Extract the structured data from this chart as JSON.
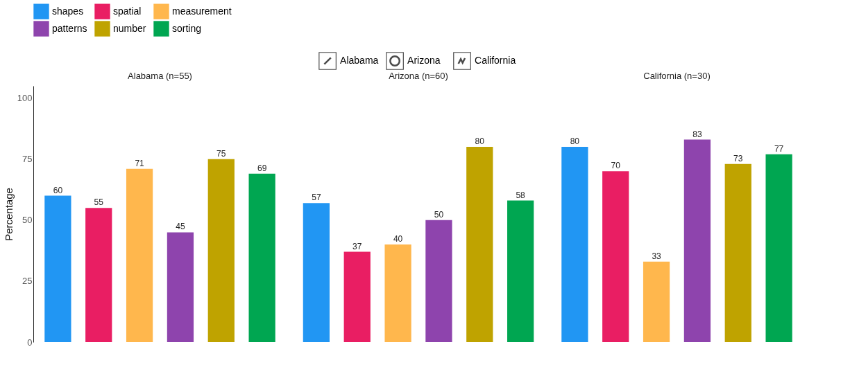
{
  "chart_data": {
    "type": "bar",
    "ylabel": "Percentage",
    "categories": [
      "Alabama (n=55)",
      "Arizona (n=60)",
      "California (n=30)"
    ],
    "ylim": [
      0,
      105
    ],
    "yticks": [
      0,
      25,
      50,
      75,
      100
    ],
    "data_labels": true,
    "legend": "top",
    "annotations": [
      "Alabama",
      "Arizona",
      "California"
    ],
    "series": [
      {
        "name": "shapes",
        "color": "#2196f3",
        "values": [
          60,
          57,
          80
        ]
      },
      {
        "name": "spatial",
        "color": "#e91e63",
        "values": [
          55,
          37,
          70
        ]
      },
      {
        "name": "measurement",
        "color": "#ffb74d",
        "values": [
          71,
          40,
          33
        ]
      },
      {
        "name": "patterns",
        "color": "#8e44ad",
        "values": [
          45,
          50,
          83
        ]
      },
      {
        "name": "number",
        "color": "#bfa300",
        "values": [
          75,
          80,
          73
        ]
      },
      {
        "name": "sorting",
        "color": "#00a651",
        "values": [
          69,
          58,
          77
        ]
      }
    ]
  }
}
